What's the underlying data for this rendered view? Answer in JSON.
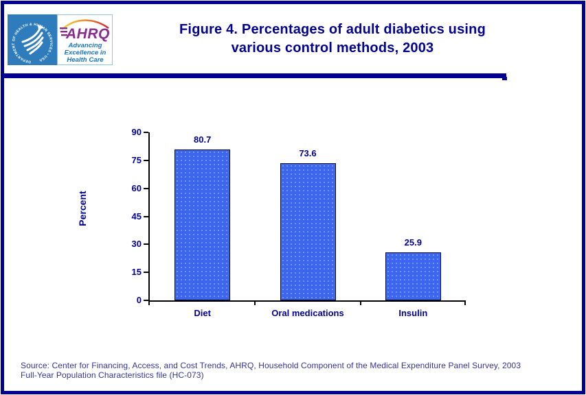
{
  "header": {
    "logo": {
      "hhs_circle_text": "DEPARTMENT OF HEALTH & HUMAN SERVICES • USA",
      "ahrq_acronym": "AHRQ",
      "tagline_lines": [
        "Advancing",
        "Excellence in",
        "Health Care"
      ]
    },
    "title_lines": [
      "Figure 4. Percentages of adult diabetics using",
      "various control methods, 2003"
    ]
  },
  "chart_data": {
    "type": "bar",
    "title": "Figure 4. Percentages of adult diabetics using various control methods, 2003",
    "categories": [
      "Diet",
      "Oral medications",
      "Insulin"
    ],
    "values": [
      80.7,
      73.6,
      25.9
    ],
    "value_labels": [
      "80.7",
      "73.6",
      "25.9"
    ],
    "xlabel": "",
    "ylabel": "Percent",
    "ylim": [
      0,
      90
    ],
    "yticks": [
      0,
      15,
      30,
      45,
      60,
      75,
      90
    ],
    "grid": false,
    "legend": "none",
    "bar_color": "#3D66F0",
    "bar_border_color": "#000A33",
    "axis_color": "#000000",
    "label_color": "#010194"
  },
  "source": {
    "text": "Source: Center for Financing, Access, and Cost Trends, AHRQ, Household Component of the Medical Expenditure Panel Survey, 2003 Full-Year Population Characteristics file (HC-073)",
    "lines": [
      "Source: Center for Financing, Access, and Cost Trends, AHRQ, Household Component of the Medical Expenditure Panel Survey, 2003",
      "Full-Year Population Characteristics file (HC-073)"
    ]
  },
  "colors": {
    "navy": "#010194",
    "bar_fill": "#3D66F0",
    "source_text": "#333399",
    "hhs_blue": "#2E7CBC",
    "ahrq_purple": "#8A2B8F",
    "tagline_blue": "#1774BC",
    "axis_black": "#000000"
  }
}
